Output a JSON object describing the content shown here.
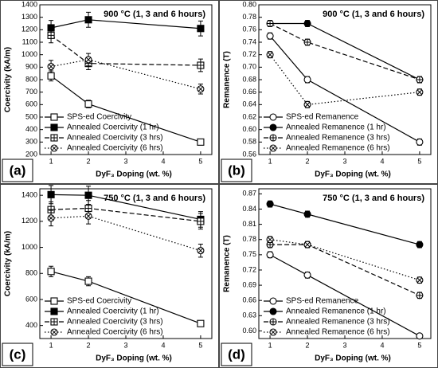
{
  "chart_data": [
    {
      "type": "line",
      "title": "900 °C (1, 3 and 6 hours)",
      "panel_label": "(a)",
      "x_label": "DyF₃ Doping (wt. %)",
      "y_label": "Coercivity (kA/m)",
      "x": [
        1,
        2,
        5
      ],
      "xlim": [
        0.7,
        5.3
      ],
      "xticks": [
        1,
        2,
        3,
        4,
        5
      ],
      "ylim": [
        200,
        1400
      ],
      "yticks": [
        200,
        300,
        400,
        500,
        600,
        700,
        800,
        900,
        1000,
        1100,
        1200,
        1300,
        1400
      ],
      "legend": "lower-left",
      "series": [
        {
          "name": "SPS-ed Coercivity",
          "color": "#000000",
          "marker": "square-open",
          "dash": "solid",
          "values": [
            830,
            605,
            300
          ],
          "errors": [
            40,
            30,
            15
          ]
        },
        {
          "name": "Annealed Coercivity (1 hr)",
          "color": "#000000",
          "marker": "square-filled",
          "dash": "solid",
          "values": [
            1215,
            1280,
            1210
          ],
          "errors": [
            60,
            60,
            60
          ]
        },
        {
          "name": "Annealed Coercivity (3 hrs)",
          "color": "#000000",
          "marker": "square-plus",
          "dash": "dashed",
          "values": [
            1155,
            930,
            915
          ],
          "errors": [
            60,
            50,
            50
          ]
        },
        {
          "name": "Annealed Coercivity (6 hrs)",
          "color": "#000000",
          "marker": "circle-x",
          "dash": "dotted",
          "values": [
            905,
            960,
            725
          ],
          "errors": [
            50,
            50,
            40
          ]
        }
      ]
    },
    {
      "type": "line",
      "title": "900 °C (1, 3 and 6 hours)",
      "panel_label": "(b)",
      "x_label": "DyF₃ Doping (wt. %)",
      "y_label": "Remanence (T)",
      "x": [
        1,
        2,
        5
      ],
      "xlim": [
        0.7,
        5.3
      ],
      "xticks": [
        1,
        2,
        3,
        4,
        5
      ],
      "ylim": [
        0.56,
        0.8
      ],
      "yticks": [
        0.56,
        0.58,
        {
          "value": 0.6,
          "label": "0.60"
        },
        0.62,
        0.64,
        0.66,
        0.68,
        {
          "value": 0.7,
          "label": "0.70"
        },
        0.72,
        0.74,
        0.76,
        0.78,
        {
          "value": 0.8,
          "label": "0.80"
        }
      ],
      "legend": "lower-left",
      "series": [
        {
          "name": "SPS-ed Remanence",
          "color": "#000000",
          "marker": "circle-open",
          "dash": "solid",
          "values": [
            0.75,
            0.68,
            0.58
          ],
          "errors": [
            0.005,
            0.005,
            0.005
          ]
        },
        {
          "name": "Annealed Remanence (1 hr)",
          "color": "#000000",
          "marker": "circle-filled",
          "dash": "solid",
          "values": [
            0.77,
            0.77,
            0.68
          ],
          "errors": [
            0.005,
            0.005,
            0.005
          ]
        },
        {
          "name": "Annealed Remanence (3 hrs)",
          "color": "#000000",
          "marker": "circle-plus",
          "dash": "dashed",
          "values": [
            0.77,
            0.74,
            0.68
          ],
          "errors": [
            0.005,
            0.005,
            0.005
          ]
        },
        {
          "name": "Annealed Remanence (6 hrs)",
          "color": "#000000",
          "marker": "circle-x",
          "dash": "dotted",
          "values": [
            0.72,
            0.64,
            0.66
          ],
          "errors": [
            0.005,
            0.005,
            0.005
          ]
        }
      ]
    },
    {
      "type": "line",
      "title": "750 °C (1, 3 and 6 hours)",
      "panel_label": "(c)",
      "x_label": "DyF₃ Doping (wt. %)",
      "y_label": "Coercivity (kA/m)",
      "x": [
        1,
        2,
        5
      ],
      "xlim": [
        0.7,
        5.3
      ],
      "xticks": [
        1,
        2,
        3,
        4,
        5
      ],
      "ylim": [
        300,
        1450
      ],
      "yticks": [
        400,
        600,
        800,
        1000,
        1200,
        1400
      ],
      "legend": "lower-left",
      "series": [
        {
          "name": "SPS-ed Coercivity",
          "color": "#000000",
          "marker": "square-open",
          "dash": "solid",
          "values": [
            815,
            740,
            415
          ],
          "errors": [
            40,
            35,
            20
          ]
        },
        {
          "name": "Annealed Coercivity (1 hr)",
          "color": "#000000",
          "marker": "square-filled",
          "dash": "solid",
          "values": [
            1405,
            1400,
            1215
          ],
          "errors": [
            70,
            70,
            60
          ]
        },
        {
          "name": "Annealed Coercivity (3 hrs)",
          "color": "#000000",
          "marker": "square-plus",
          "dash": "dashed",
          "values": [
            1290,
            1300,
            1200
          ],
          "errors": [
            60,
            60,
            60
          ]
        },
        {
          "name": "Annealed Coercivity (6 hrs)",
          "color": "#000000",
          "marker": "circle-x",
          "dash": "dotted",
          "values": [
            1225,
            1240,
            975
          ],
          "errors": [
            60,
            60,
            50
          ]
        }
      ]
    },
    {
      "type": "line",
      "title": "750 °C (1, 3 and 6 hours)",
      "panel_label": "(d)",
      "x_label": "DyF₃ Doping (wt. %)",
      "y_label": "Remanence (T)",
      "x": [
        1,
        2,
        5
      ],
      "xlim": [
        0.7,
        5.3
      ],
      "xticks": [
        1,
        2,
        3,
        4,
        5
      ],
      "ylim": [
        0.585,
        0.88
      ],
      "yticks": [
        {
          "value": 0.6,
          "label": "0.60"
        },
        0.63,
        0.66,
        0.69,
        0.72,
        0.75,
        0.78,
        0.81,
        0.84,
        0.87
      ],
      "legend": "lower-left",
      "series": [
        {
          "name": "SPS-ed Remanence",
          "color": "#000000",
          "marker": "circle-open",
          "dash": "solid",
          "values": [
            0.75,
            0.71,
            0.59
          ],
          "errors": [
            0.006,
            0.006,
            0.004
          ]
        },
        {
          "name": "Annealed Remanence (1 hr)",
          "color": "#000000",
          "marker": "circle-filled",
          "dash": "solid",
          "values": [
            0.85,
            0.83,
            0.77
          ],
          "errors": [
            0.006,
            0.006,
            0.006
          ]
        },
        {
          "name": "Annealed Remanence (3 hrs)",
          "color": "#000000",
          "marker": "circle-plus",
          "dash": "dashed",
          "values": [
            0.77,
            0.77,
            0.67
          ],
          "errors": [
            0.006,
            0.006,
            0.006
          ]
        },
        {
          "name": "Annealed Remanence (6 hrs)",
          "color": "#000000",
          "marker": "circle-x",
          "dash": "dotted",
          "values": [
            0.78,
            0.77,
            0.7
          ],
          "errors": [
            0.006,
            0.006,
            0.006
          ]
        }
      ]
    }
  ]
}
